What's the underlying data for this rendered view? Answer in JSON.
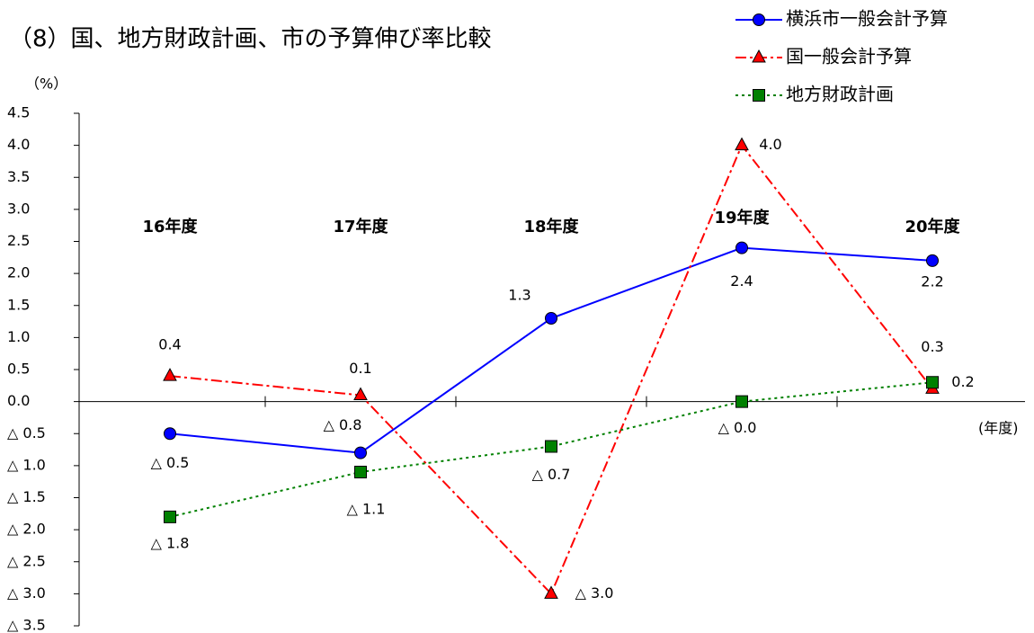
{
  "chart_data": {
    "type": "line",
    "title": "（8）国、地方財政計画、市の予算伸び率比較",
    "y_label": "（%）",
    "x_label": "(年度)",
    "categories": [
      "16年度",
      "17年度",
      "18年度",
      "19年度",
      "20年度"
    ],
    "series": [
      {
        "name": "横浜市一般会計予算",
        "color": "#0000ff",
        "marker": "circle",
        "line_style": "solid",
        "values": [
          -0.5,
          -0.8,
          1.3,
          2.4,
          2.2
        ],
        "value_labels": [
          "△ 0.5",
          "△ 0.8",
          "1.3",
          "2.4",
          "2.2"
        ]
      },
      {
        "name": "国一般会計予算",
        "color": "#ff0000",
        "marker": "triangle",
        "line_style": "dashdot",
        "values": [
          0.4,
          0.1,
          -3.0,
          4.0,
          0.2
        ],
        "value_labels": [
          "0.4",
          "0.1",
          "△ 3.0",
          "4.0",
          "0.2"
        ]
      },
      {
        "name": "地方財政計画",
        "color": "#008000",
        "marker": "square",
        "line_style": "dotted",
        "values": [
          -1.8,
          -1.1,
          -0.7,
          0.0,
          0.3
        ],
        "value_labels": [
          "△ 1.8",
          "△ 1.1",
          "△ 0.7",
          "△ 0.0",
          "0.3"
        ]
      }
    ],
    "ylim": [
      -3.5,
      4.5
    ],
    "yticks": [
      4.5,
      {
        "value": 4,
        "label": "4.0"
      },
      3.5,
      {
        "value": 3,
        "label": "3.0"
      },
      2.5,
      {
        "value": 2,
        "label": "2.0"
      },
      1.5,
      {
        "value": 1,
        "label": "1.0"
      },
      0.5,
      {
        "value": 0,
        "label": "0.0"
      },
      {
        "value": -0.5,
        "label": "△ 0.5"
      },
      {
        "value": -1,
        "label": "△ 1.0"
      },
      {
        "value": -1.5,
        "label": "△ 1.5"
      },
      {
        "value": -2,
        "label": "△ 2.0"
      },
      {
        "value": -2.5,
        "label": "△ 2.5"
      },
      {
        "value": -3,
        "label": "△ 3.0"
      },
      {
        "value": -3.5,
        "label": "△ 3.5"
      }
    ],
    "grid": false
  }
}
